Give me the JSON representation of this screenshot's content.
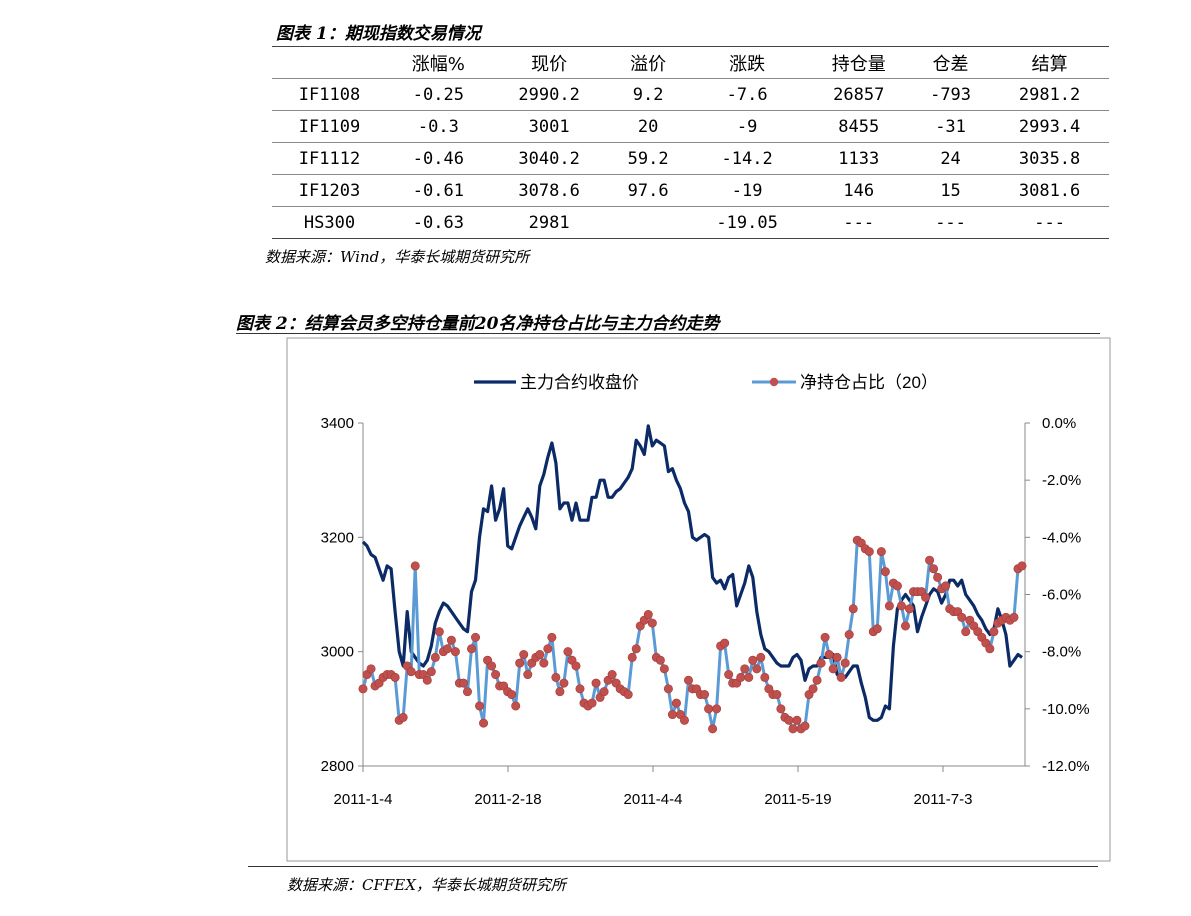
{
  "table": {
    "caption": "图表 1：期现指数交易情况",
    "headers": [
      "",
      "涨幅%",
      "现价",
      "溢价",
      "涨跌",
      "持仓量",
      "仓差",
      "结算"
    ],
    "rows": [
      [
        "IF1108",
        "-0.25",
        "2990.2",
        "9.2",
        "-7.6",
        "26857",
        "-793",
        "2981.2"
      ],
      [
        "IF1109",
        "-0.3",
        "3001",
        "20",
        "-9",
        "8455",
        "-31",
        "2993.4"
      ],
      [
        "IF1112",
        "-0.46",
        "3040.2",
        "59.2",
        "-14.2",
        "1133",
        "24",
        "3035.8"
      ],
      [
        "IF1203",
        "-0.61",
        "3078.6",
        "97.6",
        "-19",
        "146",
        "15",
        "3081.6"
      ],
      [
        "HS300",
        "-0.63",
        "2981",
        "",
        "-19.05",
        "---",
        "---",
        "---"
      ]
    ],
    "source": "数据来源：Wind，华泰长城期货研究所"
  },
  "figure": {
    "caption": "图表 2：结算会员多空持仓量前20名净持仓占比与主力合约走势",
    "source": "数据来源：CFFEX，华泰长城期货研究所"
  },
  "colors": {
    "price_line": "#0b2a66",
    "ratio_line": "#5b9bd5",
    "ratio_marker": "#c0504d",
    "frame": "#999999"
  },
  "chart_data": {
    "type": "line",
    "x_tick_labels": [
      "2011-1-4",
      "2011-2-18",
      "2011-4-4",
      "2011-5-19",
      "2011-7-3"
    ],
    "y_left": {
      "ticks": [
        "3400",
        "3200",
        "3000",
        "2800"
      ],
      "ylim": [
        2800,
        3400
      ]
    },
    "y_right": {
      "ticks": [
        "0.0%",
        "-2.0%",
        "-4.0%",
        "-6.0%",
        "-8.0%",
        "-10.0%",
        "-12.0%"
      ],
      "ylim": [
        -12.0,
        0.0
      ]
    },
    "legend_position": "top",
    "series": [
      {
        "name": "主力合约收盘价",
        "axis": "left",
        "marker": false,
        "values": [
          3192,
          3185,
          3170,
          3165,
          3145,
          3125,
          3150,
          3145,
          3070,
          3000,
          2975,
          3070,
          3000,
          2990,
          2980,
          2975,
          2985,
          3010,
          3050,
          3070,
          3085,
          3080,
          3070,
          3060,
          3050,
          3040,
          3035,
          3105,
          3125,
          3200,
          3250,
          3245,
          3290,
          3230,
          3250,
          3285,
          3185,
          3180,
          3200,
          3220,
          3235,
          3250,
          3235,
          3215,
          3290,
          3310,
          3340,
          3365,
          3330,
          3250,
          3260,
          3260,
          3230,
          3260,
          3230,
          3230,
          3230,
          3270,
          3270,
          3300,
          3300,
          3270,
          3270,
          3280,
          3285,
          3295,
          3305,
          3320,
          3370,
          3360,
          3345,
          3395,
          3360,
          3370,
          3365,
          3360,
          3315,
          3320,
          3300,
          3285,
          3260,
          3245,
          3200,
          3195,
          3200,
          3205,
          3200,
          3130,
          3120,
          3125,
          3110,
          3130,
          3135,
          3080,
          3100,
          3120,
          3150,
          3130,
          3070,
          3030,
          3005,
          3000,
          2990,
          2980,
          2975,
          2975,
          2975,
          2990,
          2995,
          2985,
          2950,
          2970,
          2975,
          2975,
          2990,
          2990,
          2990,
          2995,
          2960,
          2955,
          2955,
          2965,
          2975,
          2975,
          2945,
          2920,
          2885,
          2880,
          2880,
          2885,
          2905,
          2900,
          3010,
          3075,
          3090,
          3100,
          3090,
          3080,
          3035,
          3060,
          3080,
          3100,
          3110,
          3105,
          3085,
          3100,
          3125,
          3125,
          3115,
          3125,
          3100,
          3090,
          3080,
          3065,
          3055,
          3040,
          3030,
          3040,
          3075,
          3055,
          3030,
          2975,
          2985,
          2995,
          2990
        ]
      },
      {
        "name": "净持仓占比（20）",
        "axis": "right",
        "marker": true,
        "values": [
          -9.3,
          -8.8,
          -8.6,
          -9.2,
          -9.1,
          -8.9,
          -8.8,
          -8.8,
          -8.9,
          -10.4,
          -10.3,
          -8.5,
          -8.7,
          -5.0,
          -8.8,
          -8.8,
          -9.0,
          -8.7,
          -8.2,
          -7.3,
          -8.0,
          -7.9,
          -7.6,
          -8.0,
          -9.1,
          -9.1,
          -9.4,
          -7.9,
          -7.5,
          -9.9,
          -10.5,
          -8.3,
          -8.5,
          -8.8,
          -9.2,
          -9.2,
          -9.4,
          -9.5,
          -9.9,
          -8.4,
          -8.1,
          -8.8,
          -8.4,
          -8.2,
          -8.1,
          -8.4,
          -7.9,
          -7.5,
          -8.9,
          -9.4,
          -9.1,
          -8.0,
          -8.3,
          -8.5,
          -9.3,
          -9.8,
          -9.9,
          -9.8,
          -9.1,
          -9.6,
          -9.4,
          -9.0,
          -8.8,
          -9.1,
          -9.3,
          -9.4,
          -9.5,
          -8.2,
          -7.9,
          -7.1,
          -6.9,
          -6.7,
          -7.0,
          -8.2,
          -8.3,
          -8.6,
          -9.3,
          -10.2,
          -9.8,
          -10.2,
          -10.4,
          -9.0,
          -9.3,
          -9.3,
          -9.5,
          -9.5,
          -10.0,
          -10.7,
          -10.0,
          -7.8,
          -7.7,
          -8.8,
          -9.1,
          -9.1,
          -8.9,
          -8.6,
          -8.9,
          -8.3,
          -8.6,
          -8.2,
          -8.9,
          -9.3,
          -9.5,
          -9.5,
          -10.0,
          -10.3,
          -10.4,
          -10.7,
          -10.4,
          -10.7,
          -10.6,
          -9.5,
          -9.3,
          -9.0,
          -8.4,
          -7.5,
          -8.1,
          -8.6,
          -8.2,
          -8.9,
          -8.4,
          -7.4,
          -6.5,
          -4.1,
          -4.2,
          -4.4,
          -4.5,
          -7.3,
          -7.2,
          -4.5,
          -5.2,
          -6.4,
          -5.6,
          -5.7,
          -6.4,
          -7.1,
          -6.5,
          -5.9,
          -5.9,
          -5.9,
          -6.1,
          -4.8,
          -5.1,
          -5.4,
          -5.8,
          -5.7,
          -6.5,
          -6.6,
          -6.6,
          -6.8,
          -7.3,
          -6.9,
          -7.1,
          -7.3,
          -7.5,
          -7.7,
          -7.9,
          -7.3,
          -7.0,
          -6.9,
          -6.8,
          -6.9,
          -6.8,
          -5.1,
          -5.0
        ]
      }
    ]
  }
}
